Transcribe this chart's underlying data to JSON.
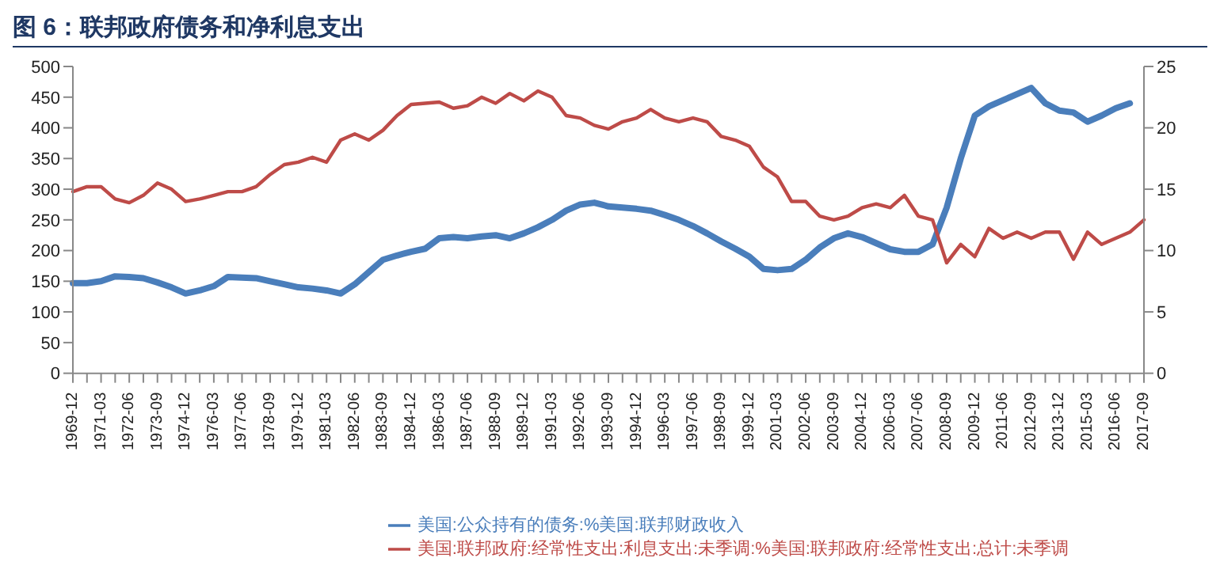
{
  "chart_data": {
    "type": "line",
    "title": "图 6：联邦政府债务和净利息支出",
    "categories": [
      "1969-12",
      null,
      "1971-03",
      null,
      "1972-06",
      null,
      "1973-09",
      null,
      "1974-12",
      null,
      "1976-03",
      null,
      "1977-06",
      null,
      "1978-09",
      null,
      "1979-12",
      null,
      "1981-03",
      null,
      "1982-06",
      null,
      "1983-09",
      null,
      "1984-12",
      null,
      "1986-03",
      null,
      "1987-06",
      null,
      "1988-09",
      null,
      "1989-12",
      null,
      "1991-03",
      null,
      "1992-06",
      null,
      "1993-09",
      null,
      "1994-12",
      null,
      "1996-03",
      null,
      "1997-06",
      null,
      "1998-09",
      null,
      "1999-12",
      null,
      "2001-03",
      null,
      "2002-06",
      null,
      "2003-09",
      null,
      "2004-12",
      null,
      "2006-03",
      null,
      "2007-06",
      null,
      "2008-09",
      null,
      "2009-12",
      null,
      "2011-06",
      null,
      "2012-09",
      null,
      "2013-12",
      null,
      "2015-03",
      null,
      "2016-06",
      null,
      "2017-09"
    ],
    "series": [
      {
        "name": "美国:公众持有的债务:%美国:联邦财政收入",
        "color": "#4a7ebb",
        "values": [
          147,
          147,
          150,
          158,
          157,
          155,
          148,
          140,
          130,
          135,
          142,
          157,
          156,
          155,
          150,
          145,
          140,
          138,
          135,
          130,
          145,
          165,
          185,
          192,
          198,
          203,
          220,
          222,
          220,
          223,
          225,
          220,
          228,
          238,
          250,
          265,
          275,
          278,
          272,
          270,
          268,
          265,
          258,
          250,
          240,
          228,
          215,
          203,
          190,
          170,
          168,
          170,
          185,
          205,
          220,
          228,
          222,
          212,
          202,
          198,
          198,
          210,
          270,
          350,
          420,
          435,
          445,
          455,
          465,
          440,
          428,
          425,
          410,
          420,
          432,
          440,
          null
        ]
      },
      {
        "name": "美国:联邦政府:经常性支出:利息支出:未季调:%美国:联邦政府:经常性支出:总计:未季调",
        "color": "#be4b48",
        "axis": "y2",
        "values": [
          14.8,
          15.2,
          15.2,
          14.2,
          13.9,
          14.5,
          15.5,
          15.0,
          14.0,
          14.2,
          14.5,
          14.8,
          14.8,
          15.2,
          16.2,
          17.0,
          17.2,
          17.6,
          17.2,
          19.0,
          19.5,
          19.0,
          19.8,
          21.0,
          21.9,
          22.0,
          22.1,
          21.6,
          21.8,
          22.5,
          22.0,
          22.8,
          22.2,
          23.0,
          22.5,
          21.0,
          20.8,
          20.2,
          19.9,
          20.5,
          20.8,
          21.5,
          20.8,
          20.5,
          20.8,
          20.5,
          19.3,
          19.0,
          18.5,
          16.8,
          16.0,
          14.0,
          14.0,
          12.8,
          12.5,
          12.8,
          13.5,
          13.8,
          13.5,
          14.5,
          12.8,
          12.5,
          9.0,
          10.5,
          9.5,
          11.8,
          11.0,
          11.5,
          11.0,
          11.5,
          11.5,
          9.3,
          11.5,
          10.5,
          11.0,
          11.5,
          12.5
        ]
      }
    ],
    "ylim": [
      0,
      500
    ],
    "yticks": [
      0,
      50,
      100,
      150,
      200,
      250,
      300,
      350,
      400,
      450,
      500
    ],
    "y2lim": [
      0,
      25
    ],
    "y2ticks": [
      0,
      5,
      10,
      15,
      20,
      25
    ],
    "grid": false,
    "legend": "bottom",
    "marker": "none",
    "line_style": "solid"
  }
}
